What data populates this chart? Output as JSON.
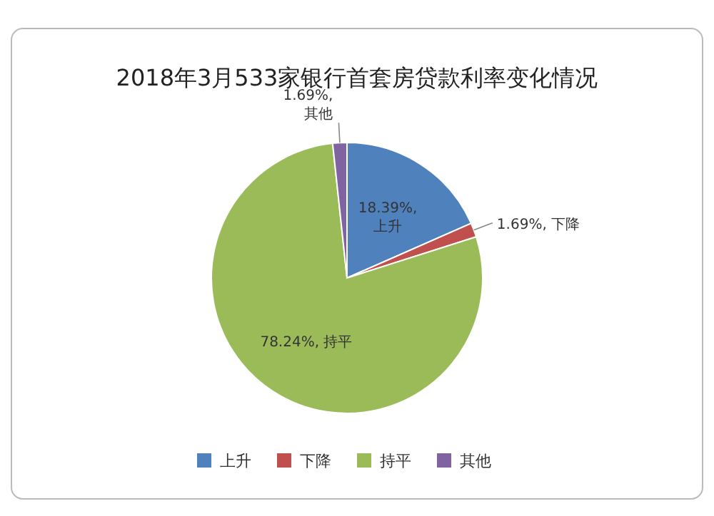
{
  "chart_data": {
    "type": "pie",
    "title": "2018年3月533家银行首套房贷款利率变化情况",
    "categories": [
      "上升",
      "下降",
      "持平",
      "其他"
    ],
    "values": [
      18.39,
      1.69,
      78.24,
      1.69
    ],
    "colors": [
      "#4f81bd",
      "#c0504d",
      "#9bbb59",
      "#8064a2"
    ],
    "value_labels": [
      "18.39%, 上升",
      "1.69%, 下降",
      "78.24%, 持平",
      "1.69%, 其他"
    ],
    "legend": "bottom"
  }
}
